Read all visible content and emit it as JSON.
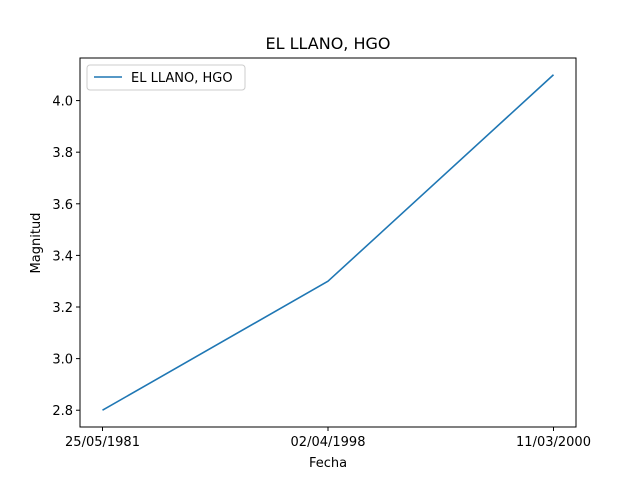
{
  "chart_data": {
    "type": "line",
    "title": "EL LLANO, HGO",
    "xlabel": "Fecha",
    "ylabel": "Magnitud",
    "categories": [
      "25/05/1981",
      "02/04/1998",
      "11/03/2000"
    ],
    "series": [
      {
        "name": "EL LLANO, HGO",
        "values": [
          2.8,
          3.3,
          4.1
        ],
        "color": "#1f77b4"
      }
    ],
    "ylim": [
      2.735,
      4.165
    ],
    "yticks": [
      "2.8",
      "3.0",
      "3.2",
      "3.4",
      "3.6",
      "3.8",
      "4.0"
    ],
    "legend_position": "top-left",
    "grid": false
  }
}
